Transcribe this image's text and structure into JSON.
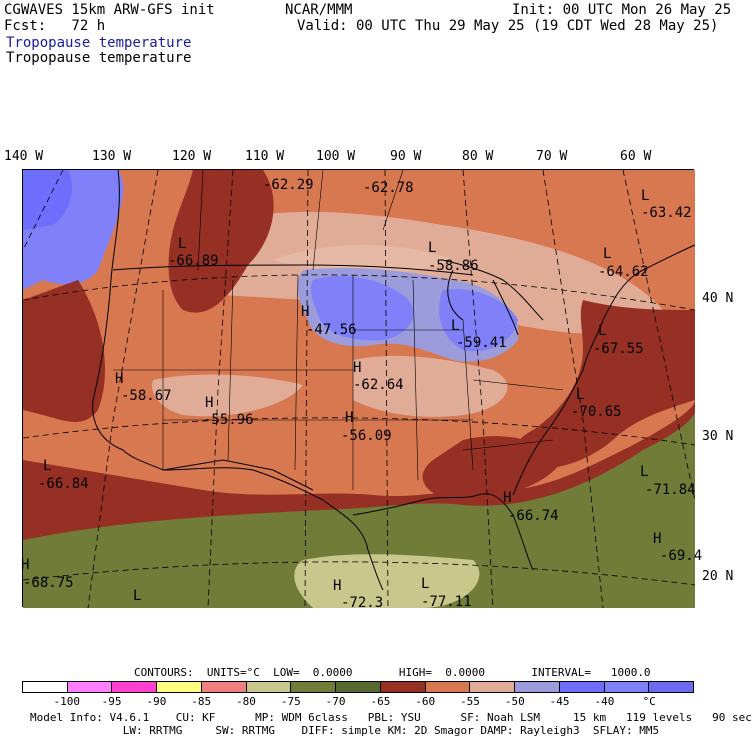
{
  "header": {
    "model": "CGWAVES 15km ARW-GFS init",
    "fcst": "Fcst:   72 h",
    "org": "NCAR/MMM",
    "init": "Init: 00 UTC Mon 26 May 25",
    "valid": "Valid: 00 UTC Thu 29 May 25 (19 CDT Wed 28 May 25)",
    "field1": "Tropopause temperature",
    "field2": "Tropopause temperature",
    "field1_color": "#1a1aa0"
  },
  "lon_labels": [
    "140 W",
    "130 W",
    "120 W",
    "110 W",
    "100 W",
    "90 W",
    "80 W",
    "70 W",
    "60 W"
  ],
  "lat_labels": [
    "40 N",
    "30 N",
    "20 N"
  ],
  "map_labels": [
    {
      "t": "-62.29"
    },
    {
      "t": "-62.78"
    },
    {
      "t": "L"
    },
    {
      "t": "-63.42"
    },
    {
      "t": "L"
    },
    {
      "t": "-66.89"
    },
    {
      "t": "L"
    },
    {
      "t": "-58.86"
    },
    {
      "t": "L"
    },
    {
      "t": "-64.62"
    },
    {
      "t": "H"
    },
    {
      "t": "-47.56"
    },
    {
      "t": "L"
    },
    {
      "t": "-59.41"
    },
    {
      "t": "L"
    },
    {
      "t": "-67.55"
    },
    {
      "t": "H"
    },
    {
      "t": "-58.67"
    },
    {
      "t": "H"
    },
    {
      "t": "-62.64"
    },
    {
      "t": "H"
    },
    {
      "t": "-55.96"
    },
    {
      "t": "H"
    },
    {
      "t": "-56.09"
    },
    {
      "t": "L"
    },
    {
      "t": "-70.65"
    },
    {
      "t": "L"
    },
    {
      "t": "-66.84"
    },
    {
      "t": "L"
    },
    {
      "t": "-71.84"
    },
    {
      "t": "H"
    },
    {
      "t": "-66.74"
    },
    {
      "t": "H"
    },
    {
      "t": "-69.4"
    },
    {
      "t": "H"
    },
    {
      "t": "-68.75"
    },
    {
      "t": "L"
    },
    {
      "t": "H"
    },
    {
      "t": "-72.3"
    },
    {
      "t": "L"
    },
    {
      "t": "-77.11"
    }
  ],
  "contours": {
    "line": "CONTOURS:  UNITS=°C  LOW=  0.0000       HIGH=  0.0000       INTERVAL=   1000.0"
  },
  "colorbar": {
    "colors": [
      "#ffffff",
      "#ff80ff",
      "#ff40d0",
      "#ffff80",
      "#f08080",
      "#c8c88c",
      "#707c38",
      "#586a30",
      "#963024",
      "#d87850",
      "#e0ac98",
      "#9c9cdc",
      "#6e6efc",
      "#8080f8",
      "#6c6cf0"
    ],
    "labels": [
      "-100",
      "-95",
      "-90",
      "-85",
      "-80",
      "-75",
      "-70",
      "-65",
      "-60",
      "-55",
      "-50",
      "-45",
      "-40",
      "°C"
    ]
  },
  "footer": {
    "line1": "Model Info: V4.6.1    CU: KF      MP: WDM 6class   PBL: YSU      SF: Noah LSM     15 km   119 levels   90 sec",
    "line2": "              LW: RRTMG     SW: RRTMG    DIFF: simple KM: 2D Smagor DAMP: Rayleigh3  SFLAY: MM5"
  }
}
